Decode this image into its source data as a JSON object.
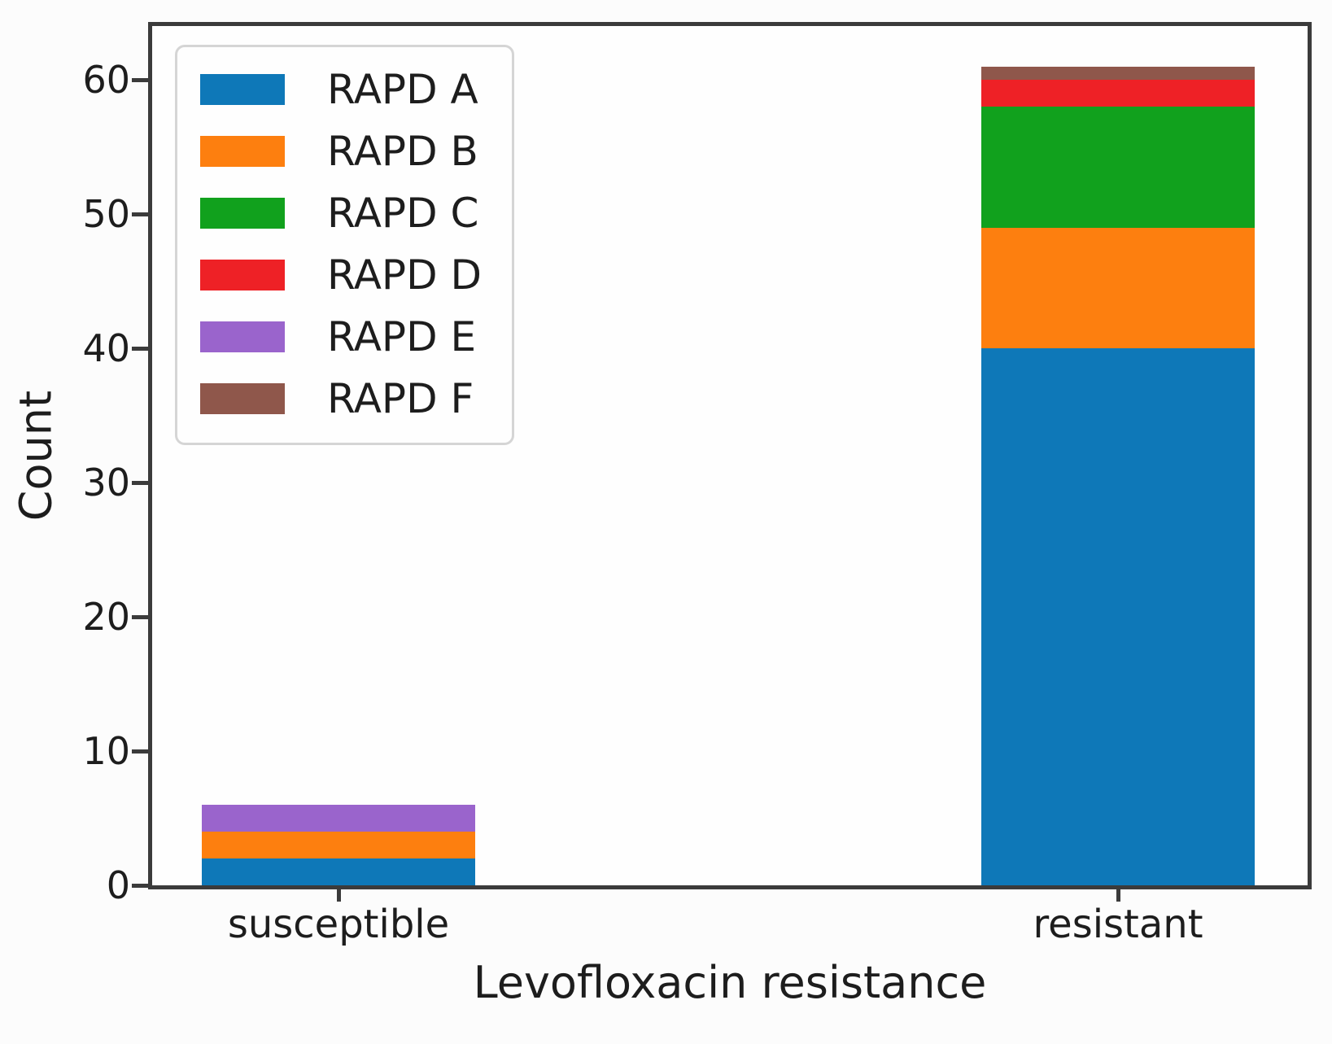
{
  "figure": {
    "background": "#fcfcfc",
    "axis_color": "#3b3b3b",
    "text_color": "#1d1d1d",
    "legend_border_color": "#d5d5d5"
  },
  "chart_data": {
    "type": "bar",
    "stacked": true,
    "title": "",
    "xlabel": "Levofloxacin resistance",
    "ylabel": "Count",
    "categories": [
      "susceptible",
      "resistant"
    ],
    "series": [
      {
        "name": "RAPD A",
        "color": "#0e78b8",
        "values": [
          2,
          40
        ]
      },
      {
        "name": "RAPD B",
        "color": "#fd7f0f",
        "values": [
          2,
          9
        ]
      },
      {
        "name": "RAPD C",
        "color": "#11a11d",
        "values": [
          0,
          9
        ]
      },
      {
        "name": "RAPD D",
        "color": "#ee2126",
        "values": [
          0,
          2
        ]
      },
      {
        "name": "RAPD E",
        "color": "#9a64cc",
        "values": [
          2,
          0
        ]
      },
      {
        "name": "RAPD F",
        "color": "#8f574b",
        "values": [
          0,
          1
        ]
      }
    ],
    "totals": [
      6,
      61
    ],
    "ylim": [
      0,
      64
    ],
    "yticks": [
      0,
      10,
      20,
      30,
      40,
      50,
      60
    ],
    "grid": false,
    "legend_position": "upper left",
    "legend_entries": [
      "RAPD A",
      "RAPD B",
      "RAPD C",
      "RAPD D",
      "RAPD E",
      "RAPD F"
    ]
  }
}
